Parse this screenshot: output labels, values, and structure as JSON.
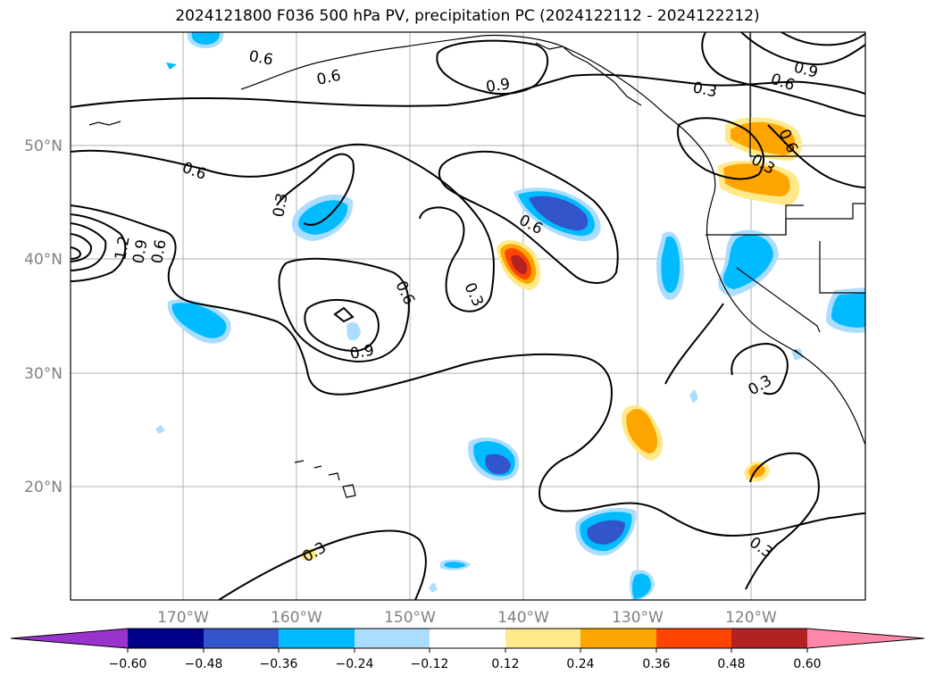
{
  "title": "2024121800 F036 500 hPa PV, precipitation PC (2024122112 - 2024122212)",
  "map": {
    "lon_labels": [
      "170°W",
      "160°W",
      "150°W",
      "140°W",
      "130°W",
      "120°W"
    ],
    "lat_labels": [
      "50°N",
      "40°N",
      "30°N",
      "20°N"
    ],
    "contour_labels": [
      {
        "text": "0.6"
      },
      {
        "text": "0.6"
      },
      {
        "text": "0.9"
      },
      {
        "text": "0.3"
      },
      {
        "text": "0.9"
      },
      {
        "text": "0.6"
      },
      {
        "text": "0.6"
      },
      {
        "text": "0.6"
      },
      {
        "text": "0.3"
      },
      {
        "text": "0.6"
      },
      {
        "text": "0.3"
      },
      {
        "text": "1.2"
      },
      {
        "text": "0.9"
      },
      {
        "text": "0.6"
      },
      {
        "text": "0.6"
      },
      {
        "text": "0.9"
      },
      {
        "text": "0.3"
      },
      {
        "text": "0.3"
      },
      {
        "text": "0.3"
      },
      {
        "text": "0.3"
      }
    ]
  },
  "colorbar": {
    "colors": [
      "#9933cc",
      "#000088",
      "#3355cc",
      "#00bbff",
      "#aaddff",
      "#ffffff",
      "#ffe98a",
      "#ffa500",
      "#ff4400",
      "#b22222",
      "#ff88aa"
    ],
    "ticks": [
      "−0.60",
      "−0.48",
      "−0.36",
      "−0.24",
      "−0.12",
      "0.12",
      "0.24",
      "0.36",
      "0.48",
      "0.60"
    ]
  }
}
